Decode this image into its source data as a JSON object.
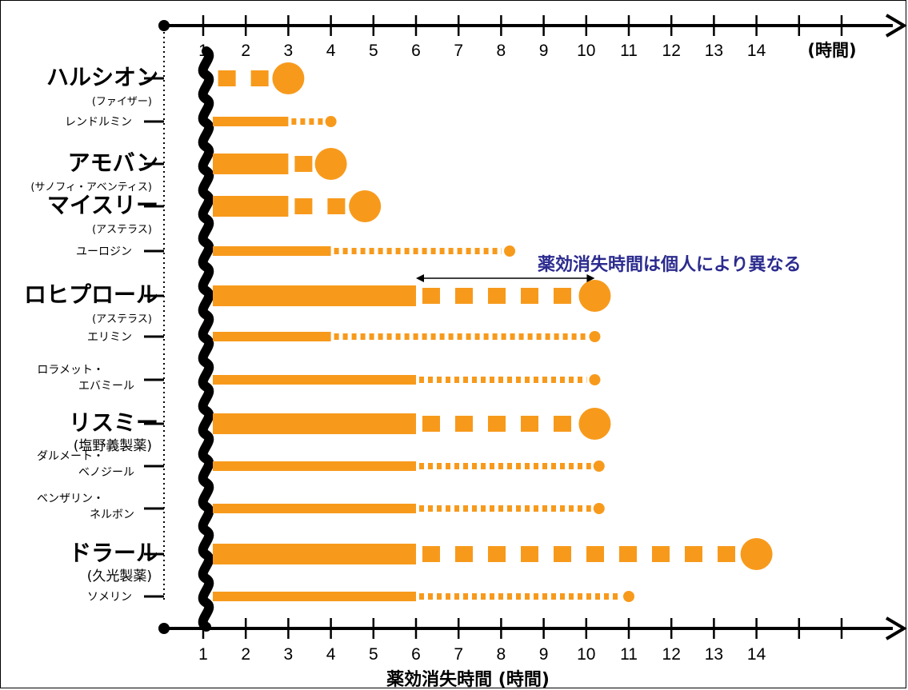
{
  "chart_data": {
    "type": "bar",
    "xlabel": "薬効消失時間 (時間)",
    "unit_label": "(時間)",
    "x_ticks": [
      1,
      2,
      3,
      4,
      5,
      6,
      7,
      8,
      9,
      10,
      11,
      12,
      13,
      14
    ],
    "xlim": [
      0,
      17
    ],
    "annotation": "薬効消失時間は個人により異なる",
    "annotation_range": [
      6,
      10.2
    ],
    "colors": {
      "bar": "#f79a1c",
      "axis": "#000000",
      "note": "#2b2b8f"
    },
    "drugs": [
      {
        "name": "ハルシオン",
        "maker": "(ファイザー)",
        "major": true,
        "solid": 1.2,
        "end": 3.0
      },
      {
        "name": "レンドルミン",
        "maker": "",
        "major": false,
        "solid": 3.0,
        "end": 4.0
      },
      {
        "name": "アモバン",
        "maker": "(サノフィ・アベンティス)",
        "major": true,
        "solid": 3.0,
        "end": 4.0
      },
      {
        "name": "マイスリー",
        "maker": "(アステラス)",
        "major": true,
        "solid": 3.0,
        "end": 4.8
      },
      {
        "name": "ユーロジン",
        "maker": "",
        "major": false,
        "solid": 4.0,
        "end": 8.2
      },
      {
        "name": "ロヒプロール",
        "maker": "(アステラス)",
        "major": true,
        "solid": 6.0,
        "end": 10.2
      },
      {
        "name": "エリミン",
        "maker": "",
        "major": false,
        "solid": 4.0,
        "end": 10.2
      },
      {
        "name": "ロラメット・\nエバミール",
        "maker": "",
        "major": false,
        "solid": 6.0,
        "end": 10.2
      },
      {
        "name": "リスミー",
        "maker": "(塩野義製薬)",
        "major": true,
        "solid": 6.0,
        "end": 10.2
      },
      {
        "name": "ダルメート・\nベノジール",
        "maker": "",
        "major": false,
        "solid": 6.0,
        "end": 10.3
      },
      {
        "name": "ベンザリン・\nネルボン",
        "maker": "",
        "major": false,
        "solid": 6.0,
        "end": 10.3
      },
      {
        "name": "ドラール",
        "maker": "(久光製薬)",
        "major": true,
        "solid": 6.0,
        "end": 14.0
      },
      {
        "name": "ソメリン",
        "maker": "",
        "major": false,
        "solid": 6.0,
        "end": 11.0
      }
    ]
  }
}
